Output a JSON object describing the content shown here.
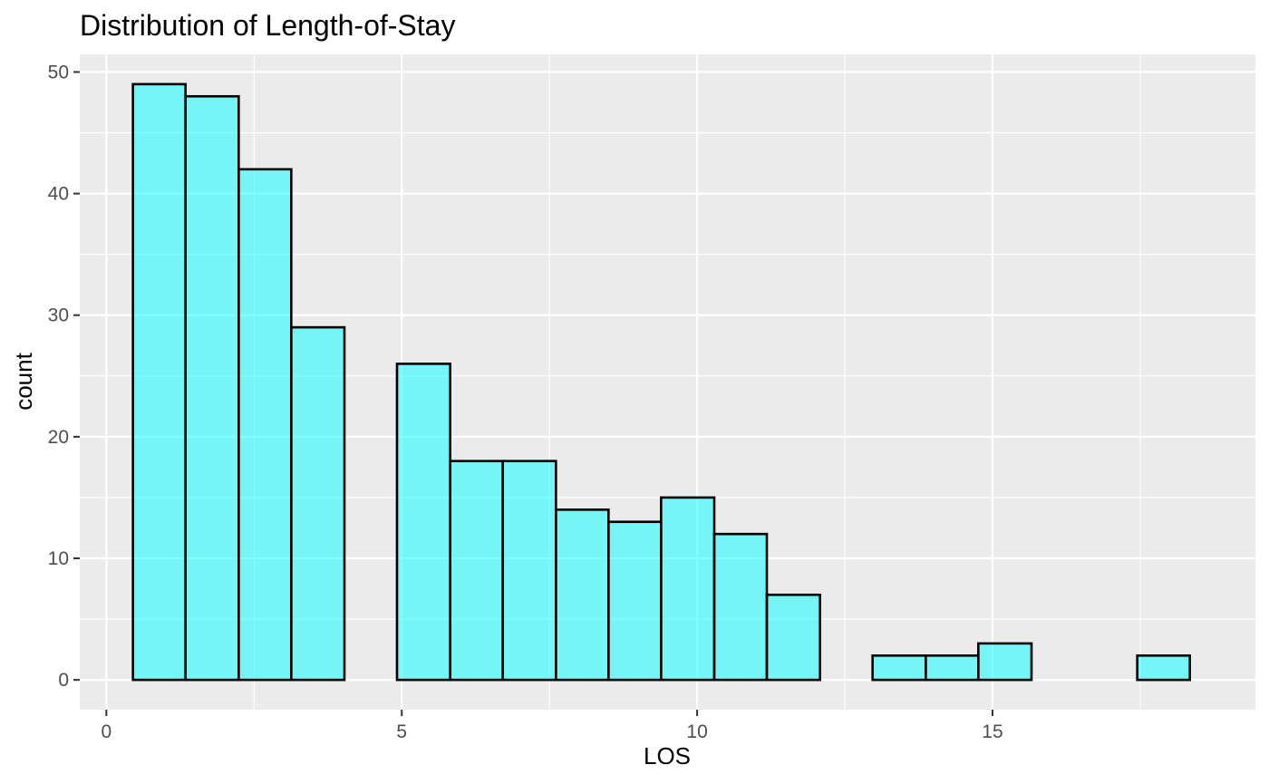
{
  "chart_data": {
    "type": "bar",
    "subtype": "histogram",
    "title": "Distribution of Length-of-Stay",
    "xlabel": "LOS",
    "ylabel": "count",
    "xlim": [
      -0.45,
      19.45
    ],
    "ylim": [
      -2.45,
      51.45
    ],
    "x_ticks": [
      0,
      5,
      10,
      15
    ],
    "y_ticks": [
      0,
      10,
      20,
      30,
      40,
      50
    ],
    "grid": true,
    "bin_width": 0.8947,
    "bins": [
      {
        "x_start": 0.45,
        "x_end": 1.34,
        "count": 49
      },
      {
        "x_start": 1.34,
        "x_end": 2.24,
        "count": 48
      },
      {
        "x_start": 2.24,
        "x_end": 3.13,
        "count": 42
      },
      {
        "x_start": 3.13,
        "x_end": 4.03,
        "count": 29
      },
      {
        "x_start": 4.03,
        "x_end": 4.92,
        "count": 0
      },
      {
        "x_start": 4.92,
        "x_end": 5.82,
        "count": 26
      },
      {
        "x_start": 5.82,
        "x_end": 6.71,
        "count": 18
      },
      {
        "x_start": 6.71,
        "x_end": 7.61,
        "count": 18
      },
      {
        "x_start": 7.61,
        "x_end": 8.5,
        "count": 14
      },
      {
        "x_start": 8.5,
        "x_end": 9.39,
        "count": 13
      },
      {
        "x_start": 9.39,
        "x_end": 10.29,
        "count": 15
      },
      {
        "x_start": 10.29,
        "x_end": 11.18,
        "count": 12
      },
      {
        "x_start": 11.18,
        "x_end": 12.08,
        "count": 7
      },
      {
        "x_start": 12.08,
        "x_end": 12.97,
        "count": 0
      },
      {
        "x_start": 12.97,
        "x_end": 13.87,
        "count": 2
      },
      {
        "x_start": 13.87,
        "x_end": 14.76,
        "count": 2
      },
      {
        "x_start": 14.76,
        "x_end": 15.66,
        "count": 3
      },
      {
        "x_start": 15.66,
        "x_end": 16.55,
        "count": 0
      },
      {
        "x_start": 16.55,
        "x_end": 17.45,
        "count": 0
      },
      {
        "x_start": 17.45,
        "x_end": 18.34,
        "count": 2
      }
    ],
    "colors": {
      "bar_fill": "#00FFFF",
      "bar_fill_opacity": 0.5,
      "bar_outline": "#000000",
      "panel_background": "#EBEBEB",
      "grid": "#FFFFFF",
      "tick_text": "#4D4D4D",
      "tick_mark": "#333333"
    }
  }
}
